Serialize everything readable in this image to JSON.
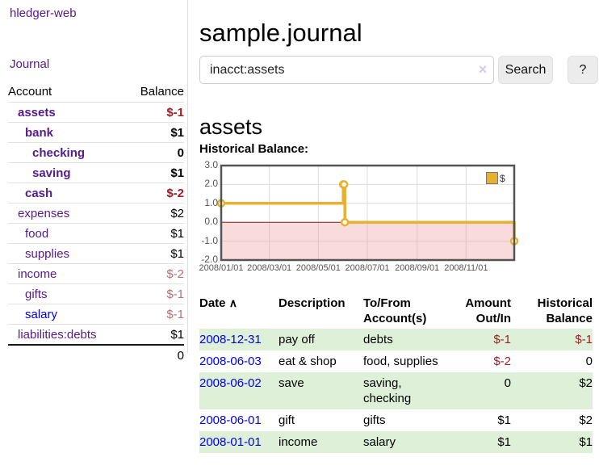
{
  "app": {
    "brand": "hledger-web",
    "nav_journal": "Journal"
  },
  "sidebar": {
    "header": {
      "account": "Account",
      "balance": "Balance"
    },
    "rows": [
      {
        "account": "assets",
        "balance": "$-1"
      },
      {
        "account": "bank",
        "balance": "$1"
      },
      {
        "account": "checking",
        "balance": "0"
      },
      {
        "account": "saving",
        "balance": "$1"
      },
      {
        "account": "cash",
        "balance": "$-2"
      },
      {
        "account": "expenses",
        "balance": "$2"
      },
      {
        "account": "food",
        "balance": "$1"
      },
      {
        "account": "supplies",
        "balance": "$1"
      },
      {
        "account": "income",
        "balance": "$-2"
      },
      {
        "account": "gifts",
        "balance": "$-1"
      },
      {
        "account": "salary",
        "balance": "$-1"
      },
      {
        "account": "liabilities:debts",
        "balance": "$1"
      }
    ],
    "total": "0"
  },
  "main": {
    "title": "sample.journal",
    "search": {
      "value": "inacct:assets",
      "clear_icon": "×",
      "button": "Search",
      "help": "?"
    },
    "heading": "assets",
    "chart_label": "Historical Balance:"
  },
  "chart_data": {
    "type": "line",
    "title": "Historical Balance:",
    "x_start": "2008/01/01",
    "x_end": "2008/12/31",
    "ylim": [
      -2,
      3
    ],
    "ytick_labels": [
      "3.0",
      "2.0",
      "1.0",
      "0.0",
      "-1.0",
      "-2.0"
    ],
    "xtick_labels": [
      "2008/01/01",
      "2008/03/01",
      "2008/05/01",
      "2008/07/01",
      "2008/09/01",
      "2008/11/01"
    ],
    "series": [
      {
        "name": "$",
        "color": "#e7b12f",
        "step": true,
        "points": [
          [
            "2008/01/01",
            1
          ],
          [
            "2008/06/01",
            2
          ],
          [
            "2008/06/02",
            2
          ],
          [
            "2008/06/03",
            0
          ],
          [
            "2008/12/31",
            -1
          ]
        ]
      }
    ],
    "grid": true,
    "legend": {
      "label": "$",
      "position": "top-right"
    },
    "negative_region_color": "rgba(242,153,153,0.35)",
    "zero_line_color": "#8b1d1d",
    "border_color": "#545454"
  },
  "table": {
    "headers": {
      "date": "Date",
      "sort_icon": "∧",
      "description": "Description",
      "accounts": "To/From Account(s)",
      "amount": "Amount Out/In",
      "balance": "Historical Balance"
    },
    "rows": [
      {
        "date": "2008-12-31",
        "description": "pay off",
        "accounts": "debts",
        "amount": "$-1",
        "balance": "$-1"
      },
      {
        "date": "2008-06-03",
        "description": "eat & shop",
        "accounts": "food, supplies",
        "amount": "$-2",
        "balance": "0"
      },
      {
        "date": "2008-06-02",
        "description": "save",
        "accounts": "saving, checking",
        "amount": "0",
        "balance": "$2"
      },
      {
        "date": "2008-06-01",
        "description": "gift",
        "accounts": "gifts",
        "amount": "$1",
        "balance": "$2"
      },
      {
        "date": "2008-01-01",
        "description": "income",
        "accounts": "salary",
        "amount": "$1",
        "balance": "$1"
      }
    ]
  },
  "colors": {
    "link_purple": "#551a8b",
    "link_blue": "#0000e6",
    "negative_strong": "#9e1f28",
    "negative_soft": "#bb6f75",
    "row_green": "#dff0d8",
    "chart_gold": "#e7b12f",
    "chart_pink": "#fadcdc"
  }
}
